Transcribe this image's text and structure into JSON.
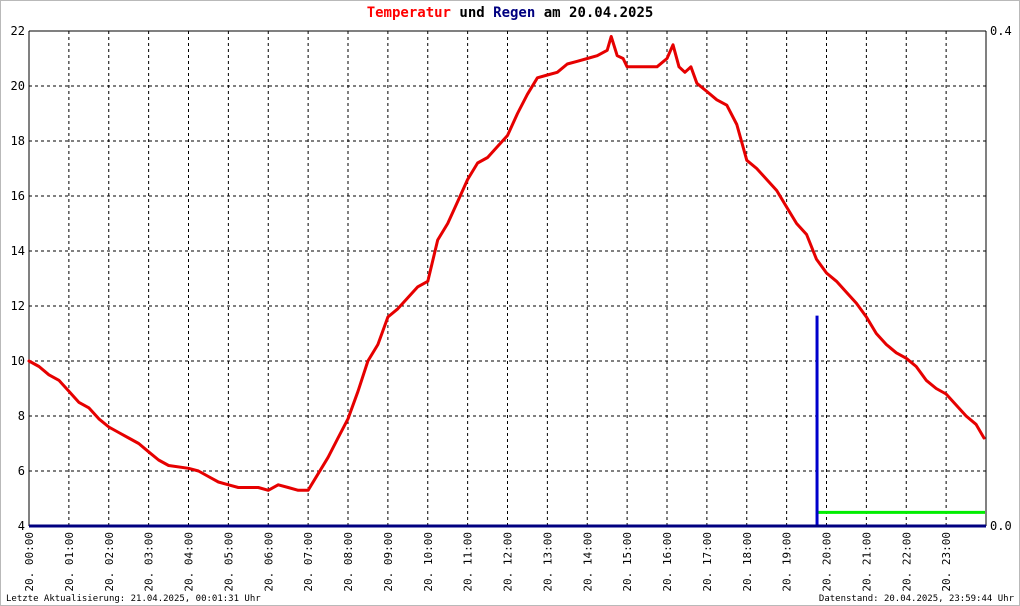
{
  "title": {
    "part1": "Temperatur",
    "part2": " und ",
    "part3": "Regen",
    "part4": " am 20.04.2025"
  },
  "footer": {
    "left": "Letzte Aktualisierung: 21.04.2025, 00:01:31 Uhr",
    "right": "Datenstand: 20.04.2025, 23:59:44 Uhr"
  },
  "colors": {
    "temperature": "#e60000",
    "rain": "#0000cc",
    "axis": "#000080",
    "reference": "#00ee00",
    "grid": "#000000"
  },
  "chart_data": {
    "type": "line",
    "grid": true,
    "x_unit": "hours",
    "xlim": [
      0,
      24
    ],
    "ylim": [
      4,
      22
    ],
    "y2lim": [
      0,
      0.4
    ],
    "yticks": [
      4,
      6,
      8,
      10,
      12,
      14,
      16,
      18,
      20,
      22
    ],
    "y2ticks": [
      "0.0",
      "0.4"
    ],
    "xticks": [
      "20. 00:00",
      "20. 01:00",
      "20. 02:00",
      "20. 03:00",
      "20. 04:00",
      "20. 05:00",
      "20. 06:00",
      "20. 07:00",
      "20. 08:00",
      "20. 09:00",
      "20. 10:00",
      "20. 11:00",
      "20. 12:00",
      "20. 13:00",
      "20. 14:00",
      "20. 15:00",
      "20. 16:00",
      "20. 17:00",
      "20. 18:00",
      "20. 19:00",
      "20. 20:00",
      "20. 21:00",
      "20. 22:00",
      "20. 23:00"
    ],
    "series": [
      {
        "name": "Temperatur",
        "axis": "left",
        "x": [
          0,
          0.25,
          0.5,
          0.75,
          1.0,
          1.25,
          1.5,
          1.75,
          2.0,
          2.25,
          2.5,
          2.75,
          3.0,
          3.25,
          3.5,
          4.0,
          4.25,
          4.5,
          4.75,
          5.0,
          5.25,
          5.5,
          5.75,
          6.0,
          6.25,
          6.5,
          6.75,
          7.0,
          7.25,
          7.5,
          7.75,
          8.0,
          8.25,
          8.5,
          8.75,
          9.0,
          9.25,
          9.5,
          9.75,
          10.0,
          10.25,
          10.5,
          10.75,
          11.0,
          11.25,
          11.5,
          11.75,
          12.0,
          12.25,
          12.5,
          12.75,
          13.0,
          13.25,
          13.5,
          13.75,
          14.0,
          14.25,
          14.5,
          14.6,
          14.75,
          14.9,
          15.0,
          15.25,
          15.5,
          15.75,
          16.0,
          16.15,
          16.3,
          16.45,
          16.6,
          16.75,
          17.0,
          17.25,
          17.5,
          17.75,
          18.0,
          18.25,
          18.5,
          18.75,
          19.0,
          19.25,
          19.5,
          19.75,
          20.0,
          20.25,
          20.5,
          20.75,
          21.0,
          21.25,
          21.5,
          21.75,
          22.0,
          22.25,
          22.5,
          22.75,
          23.0,
          23.25,
          23.5,
          23.75,
          23.95
        ],
        "values": [
          10.0,
          9.8,
          9.5,
          9.3,
          8.9,
          8.5,
          8.3,
          7.9,
          7.6,
          7.4,
          7.2,
          7.0,
          6.7,
          6.4,
          6.2,
          6.1,
          6.0,
          5.8,
          5.6,
          5.5,
          5.4,
          5.4,
          5.4,
          5.3,
          5.5,
          5.4,
          5.3,
          5.3,
          5.9,
          6.5,
          7.2,
          7.9,
          8.9,
          10.0,
          10.6,
          11.6,
          11.9,
          12.3,
          12.7,
          12.9,
          14.4,
          15.0,
          15.8,
          16.6,
          17.2,
          17.4,
          17.8,
          18.2,
          19.0,
          19.7,
          20.3,
          20.4,
          20.5,
          20.8,
          20.9,
          21.0,
          21.1,
          21.3,
          21.8,
          21.1,
          21.0,
          20.7,
          20.7,
          20.7,
          20.7,
          21.0,
          21.5,
          20.7,
          20.5,
          20.7,
          20.1,
          19.8,
          19.5,
          19.3,
          18.6,
          17.3,
          17.0,
          16.6,
          16.2,
          15.6,
          15.0,
          14.6,
          13.7,
          13.2,
          12.9,
          12.5,
          12.1,
          11.6,
          11.0,
          10.6,
          10.3,
          10.1,
          9.8,
          9.3,
          9.0,
          8.8,
          8.4,
          8.0,
          7.7,
          7.2
        ]
      },
      {
        "name": "Regen",
        "axis": "right",
        "x": [
          19.75
        ],
        "values": [
          0.17
        ]
      }
    ],
    "reference_line": {
      "axis": "right",
      "x_start": 19.8,
      "x_end": 24,
      "value": 0.011
    }
  }
}
